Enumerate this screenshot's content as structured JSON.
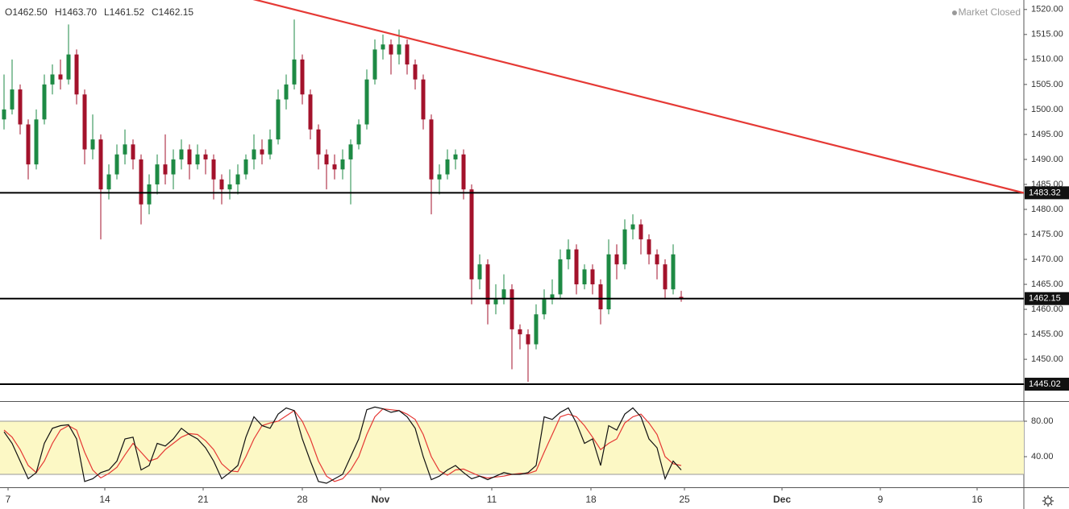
{
  "chart_data": [
    {
      "type": "candlestick",
      "header": [
        "O1462.50",
        "H1463.70",
        "L1461.52",
        "C1462.15"
      ],
      "status": "Market Closed",
      "up_color": "#1e8a44",
      "down_color": "#a3122b",
      "xlim": [
        -0.5,
        126.5
      ],
      "xticks": [
        {
          "value": 0.5,
          "label": "7"
        },
        {
          "value": 12.5,
          "label": "14"
        },
        {
          "value": 24.7,
          "label": "21"
        },
        {
          "value": 37,
          "label": "28"
        },
        {
          "value": 46.7,
          "label": "Nov"
        },
        {
          "value": 60.5,
          "label": "11"
        },
        {
          "value": 72.8,
          "label": "18"
        },
        {
          "value": 84.4,
          "label": "25"
        },
        {
          "value": 96.5,
          "label": "Dec"
        },
        {
          "value": 108.7,
          "label": "9"
        },
        {
          "value": 120.7,
          "label": "16"
        }
      ],
      "ylim": [
        1441.8,
        1521.9
      ],
      "yticks": [
        {
          "value": 1445,
          "label": "1445.00"
        },
        {
          "value": 1450,
          "label": "1450.00"
        },
        {
          "value": 1455,
          "label": "1455.00"
        },
        {
          "value": 1460,
          "label": "1460.00"
        },
        {
          "value": 1465,
          "label": "1465.00"
        },
        {
          "value": 1470,
          "label": "1470.00"
        },
        {
          "value": 1475,
          "label": "1475.00"
        },
        {
          "value": 1480,
          "label": "1480.00"
        },
        {
          "value": 1485,
          "label": "1485.00"
        },
        {
          "value": 1490,
          "label": "1490.00"
        },
        {
          "value": 1495,
          "label": "1495.00"
        },
        {
          "value": 1500,
          "label": "1500.00"
        },
        {
          "value": 1505,
          "label": "1505.00"
        },
        {
          "value": 1510,
          "label": "1510.00"
        },
        {
          "value": 1515,
          "label": "1515.00"
        },
        {
          "value": 1520,
          "label": "1520.00"
        }
      ],
      "levels": [
        1483.32,
        1462.15,
        1445.02
      ],
      "trendline": {
        "x": [
          31.3,
          126.5
        ],
        "y": [
          1521.9,
          1483.3
        ],
        "color": "#e53935"
      },
      "open": [
        1498,
        1500,
        1504,
        1497,
        1489,
        1498,
        1505,
        1507,
        1506,
        1511,
        1503,
        1492,
        1494,
        1484,
        1487,
        1491,
        1493,
        1490,
        1481,
        1485,
        1489,
        1487,
        1490,
        1492,
        1489,
        1491,
        1490,
        1486,
        1484,
        1485,
        1487,
        1490,
        1492,
        1491,
        1494,
        1502,
        1505,
        1510,
        1503,
        1496,
        1491,
        1489,
        1488,
        1490,
        1493,
        1497,
        1506,
        1512,
        1513,
        1511,
        1513,
        1509,
        1506,
        1498,
        1486,
        1487,
        1490,
        1491,
        1484,
        1466,
        1469,
        1461,
        1462,
        1464,
        1456,
        1455,
        1453,
        1459,
        1462,
        1463,
        1470,
        1472,
        1465,
        1468,
        1465,
        1460,
        1471,
        1469,
        1476,
        1477,
        1474,
        1471,
        1469,
        1464,
        1462.5
      ],
      "high": [
        1507,
        1510,
        1505,
        1498,
        1500,
        1507,
        1509,
        1510,
        1517,
        1512,
        1504,
        1499,
        1495,
        1489,
        1493,
        1496,
        1494,
        1491,
        1487,
        1491,
        1495,
        1492,
        1494,
        1493,
        1493,
        1492,
        1491,
        1487,
        1488,
        1489,
        1491,
        1495,
        1494,
        1496,
        1504,
        1507,
        1518,
        1511,
        1504,
        1497,
        1492,
        1491,
        1492,
        1494,
        1498,
        1508,
        1514,
        1515,
        1514,
        1516,
        1514,
        1510,
        1507,
        1499,
        1489,
        1492,
        1492,
        1492,
        1485,
        1471,
        1470,
        1465,
        1467,
        1465,
        1457,
        1456,
        1461,
        1464,
        1466,
        1472,
        1474,
        1473,
        1469,
        1469,
        1466,
        1474,
        1473,
        1478,
        1479,
        1478,
        1475,
        1472,
        1470,
        1473,
        1463.7
      ],
      "low": [
        1496,
        1499,
        1495,
        1486,
        1488,
        1497,
        1503,
        1504,
        1505,
        1501,
        1489,
        1490,
        1474,
        1482,
        1486,
        1489,
        1488,
        1477,
        1479,
        1483,
        1485,
        1484,
        1488,
        1486,
        1488,
        1487,
        1482,
        1481,
        1482,
        1483,
        1486,
        1488,
        1489,
        1490,
        1493,
        1500,
        1504,
        1501,
        1494,
        1488,
        1484,
        1486,
        1486,
        1481,
        1492,
        1496,
        1505,
        1510,
        1507,
        1509,
        1507,
        1504,
        1496,
        1479,
        1483,
        1486,
        1488,
        1482,
        1461,
        1464,
        1457,
        1459,
        1461,
        1448,
        1452,
        1445.5,
        1452,
        1458,
        1461,
        1462,
        1468,
        1463,
        1464,
        1463,
        1457,
        1459,
        1466,
        1468,
        1474,
        1471,
        1469,
        1466,
        1462,
        1463,
        1461.52
      ],
      "close": [
        1500,
        1504,
        1497,
        1489,
        1498,
        1505,
        1507,
        1506,
        1511,
        1503,
        1492,
        1494,
        1484,
        1487,
        1491,
        1493,
        1490,
        1481,
        1485,
        1489,
        1487,
        1490,
        1492,
        1489,
        1491,
        1490,
        1486,
        1484,
        1485,
        1487,
        1490,
        1492,
        1491,
        1494,
        1502,
        1505,
        1510,
        1503,
        1496,
        1491,
        1489,
        1488,
        1490,
        1493,
        1497,
        1506,
        1512,
        1513,
        1511,
        1513,
        1509,
        1506,
        1498,
        1486,
        1487,
        1490,
        1491,
        1484,
        1466,
        1469,
        1461,
        1462,
        1464,
        1456,
        1455,
        1453,
        1459,
        1462,
        1463,
        1470,
        1472,
        1465,
        1468,
        1465,
        1460,
        1471,
        1469,
        1476,
        1477,
        1474,
        1471,
        1469,
        1464,
        1471,
        1462.15
      ]
    },
    {
      "type": "line",
      "ylim": [
        5.5,
        100.9
      ],
      "yticks": [
        {
          "value": 40,
          "label": "40.00"
        },
        {
          "value": 80,
          "label": "80.00"
        }
      ],
      "levels": [
        20,
        80
      ],
      "series": [
        {
          "color": "#111111",
          "values": [
            68,
            55,
            35,
            15,
            22,
            55,
            72,
            75,
            76,
            60,
            12,
            15,
            22,
            25,
            35,
            60,
            62,
            25,
            30,
            55,
            52,
            60,
            72,
            65,
            60,
            50,
            35,
            15,
            22,
            30,
            62,
            85,
            75,
            72,
            88,
            95,
            92,
            60,
            35,
            12,
            10,
            15,
            20,
            40,
            60,
            93,
            96,
            94,
            90,
            92,
            85,
            72,
            40,
            14,
            18,
            25,
            30,
            22,
            15,
            18,
            14,
            18,
            22,
            20,
            20,
            22,
            30,
            85,
            82,
            90,
            95,
            78,
            55,
            60,
            30,
            75,
            70,
            88,
            95,
            85,
            60,
            50,
            15,
            35,
            25
          ]
        },
        {
          "color": "#e53935",
          "values": [
            70,
            62,
            48,
            30,
            22,
            35,
            55,
            70,
            75,
            70,
            45,
            25,
            16,
            21,
            28,
            42,
            55,
            45,
            35,
            38,
            48,
            55,
            62,
            66,
            65,
            58,
            48,
            32,
            24,
            23,
            40,
            60,
            75,
            78,
            80,
            86,
            92,
            80,
            60,
            35,
            18,
            12,
            15,
            25,
            40,
            65,
            85,
            94,
            93,
            92,
            88,
            82,
            65,
            40,
            24,
            19,
            25,
            26,
            22,
            18,
            16,
            17,
            18,
            20,
            21,
            21,
            24,
            45,
            65,
            85,
            88,
            85,
            75,
            62,
            48,
            55,
            60,
            78,
            85,
            88,
            78,
            65,
            40,
            32,
            30
          ]
        }
      ]
    }
  ]
}
